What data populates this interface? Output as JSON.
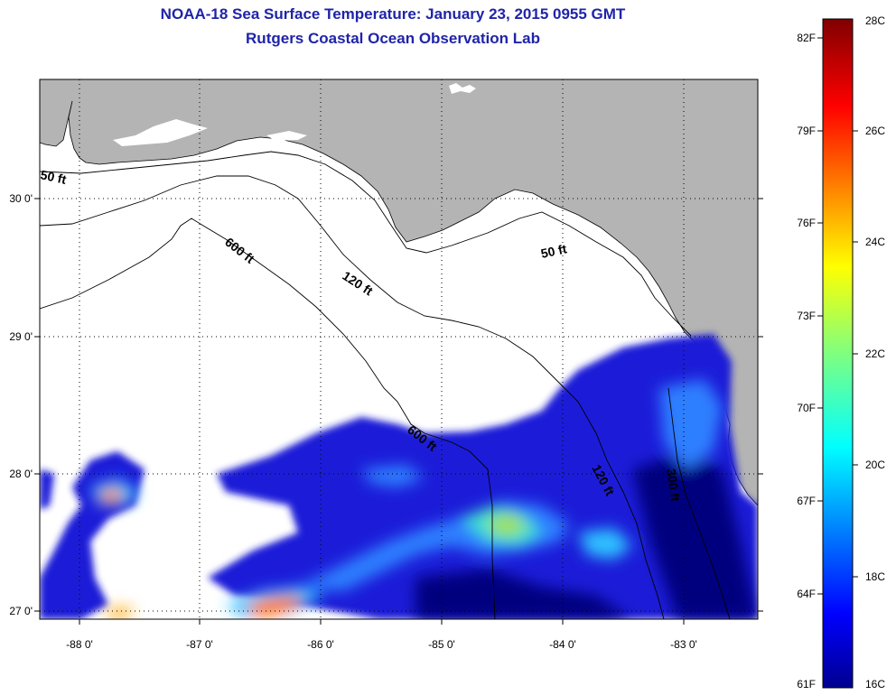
{
  "title": "NOAA-18 Sea Surface Temperature:  January 23, 2015 0955 GMT",
  "subtitle": "Rutgers Coastal Ocean Observation Lab",
  "map": {
    "lon_range": [
      -88.33,
      -82.5
    ],
    "lat_range": [
      26.93,
      30.85
    ],
    "grid": true,
    "x_ticks": [
      "-88 0'",
      "-87 0'",
      "-86 0'",
      "-85 0'",
      "-84 0'",
      "-83 0'"
    ],
    "y_ticks": [
      "30 0'",
      "29 0'",
      "28 0'",
      "27 0'"
    ],
    "contour_labels": [
      "50 ft",
      "50 ft",
      "120 ft",
      "120 ft",
      "600 ft",
      "600 ft",
      "300 ft"
    ],
    "colors": {
      "land": "#b4b4b4",
      "ocean_nodata": "#ffffff",
      "title": "#1f24a8"
    }
  },
  "colorbar": {
    "range_c": [
      16,
      28
    ],
    "celsius_labels": [
      "28C",
      "26C",
      "24C",
      "22C",
      "20C",
      "18C",
      "16C"
    ],
    "fahrenheit_labels": [
      "82F",
      "79F",
      "76F",
      "73F",
      "70F",
      "67F",
      "64F",
      "61F"
    ]
  }
}
